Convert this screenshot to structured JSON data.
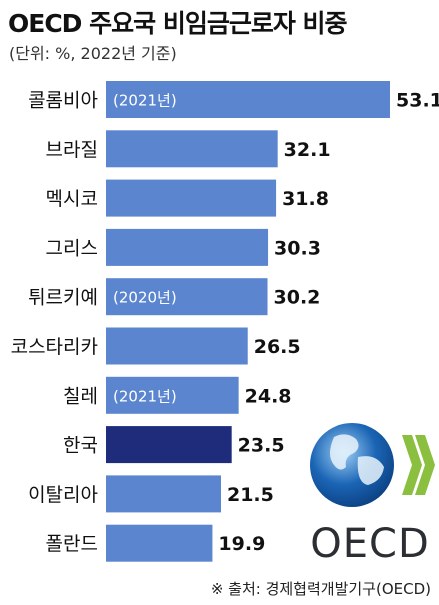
{
  "chart_data": {
    "type": "bar",
    "orientation": "horizontal",
    "title": "OECD 주요국 비임금근로자 비중",
    "subtitle": "(단위: %, 2022년 기준)",
    "categories": [
      "콜롬비아",
      "브라질",
      "멕시코",
      "그리스",
      "튀르키예",
      "코스타리카",
      "칠레",
      "한국",
      "이탈리아",
      "폴란드"
    ],
    "values": [
      53.1,
      32.1,
      31.8,
      30.3,
      30.2,
      26.5,
      24.8,
      23.5,
      21.5,
      19.9
    ],
    "value_labels": [
      "53.1",
      "32.1",
      "31.8",
      "30.3",
      "30.2",
      "26.5",
      "24.8",
      "23.5",
      "21.5",
      "19.9"
    ],
    "year_notes": [
      "(2021년)",
      "",
      "",
      "",
      "(2020년)",
      "",
      "(2021년)",
      "",
      "",
      ""
    ],
    "highlight_category": "한국",
    "xlim": [
      0,
      53.1
    ],
    "grid": false,
    "legend": "none"
  },
  "colors": {
    "bar": "#5b86cf",
    "highlight": "#1f2c7c",
    "note_text": "#ffffff",
    "logo_text": "#2b2f33",
    "logo_accent": "#8bbf3f",
    "globe_blue": "#1b65b5"
  },
  "logo": {
    "text": "OECD",
    "icon": "globe-icon"
  },
  "source": "※ 출처: 경제협력개발기구(OECD)"
}
